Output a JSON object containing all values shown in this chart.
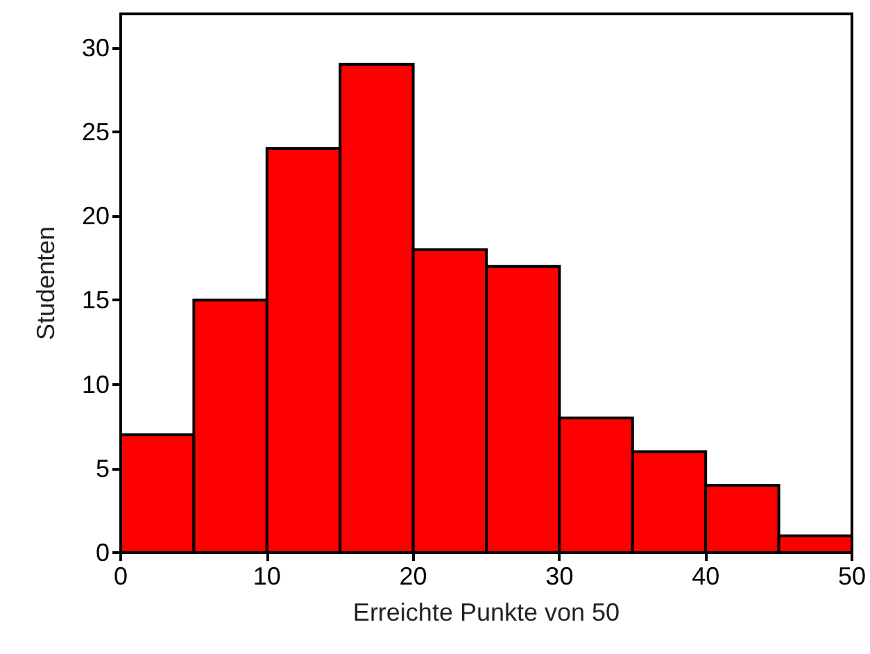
{
  "chart_data": {
    "type": "histogram",
    "xlabel": "Erreichte Punkte von 50",
    "ylabel": "Studenten",
    "bins": [
      0,
      5,
      10,
      15,
      20,
      25,
      30,
      35,
      40,
      45,
      50
    ],
    "values": [
      7,
      15,
      24,
      29,
      18,
      17,
      8,
      6,
      4,
      1
    ],
    "color": "#ff0000",
    "xlim": [
      0,
      50
    ],
    "xticks": [
      0,
      10,
      20,
      30,
      40,
      50
    ],
    "ylim": [
      0,
      32
    ],
    "yticks": [
      0,
      5,
      10,
      15,
      20,
      25,
      30
    ],
    "grid": false
  }
}
